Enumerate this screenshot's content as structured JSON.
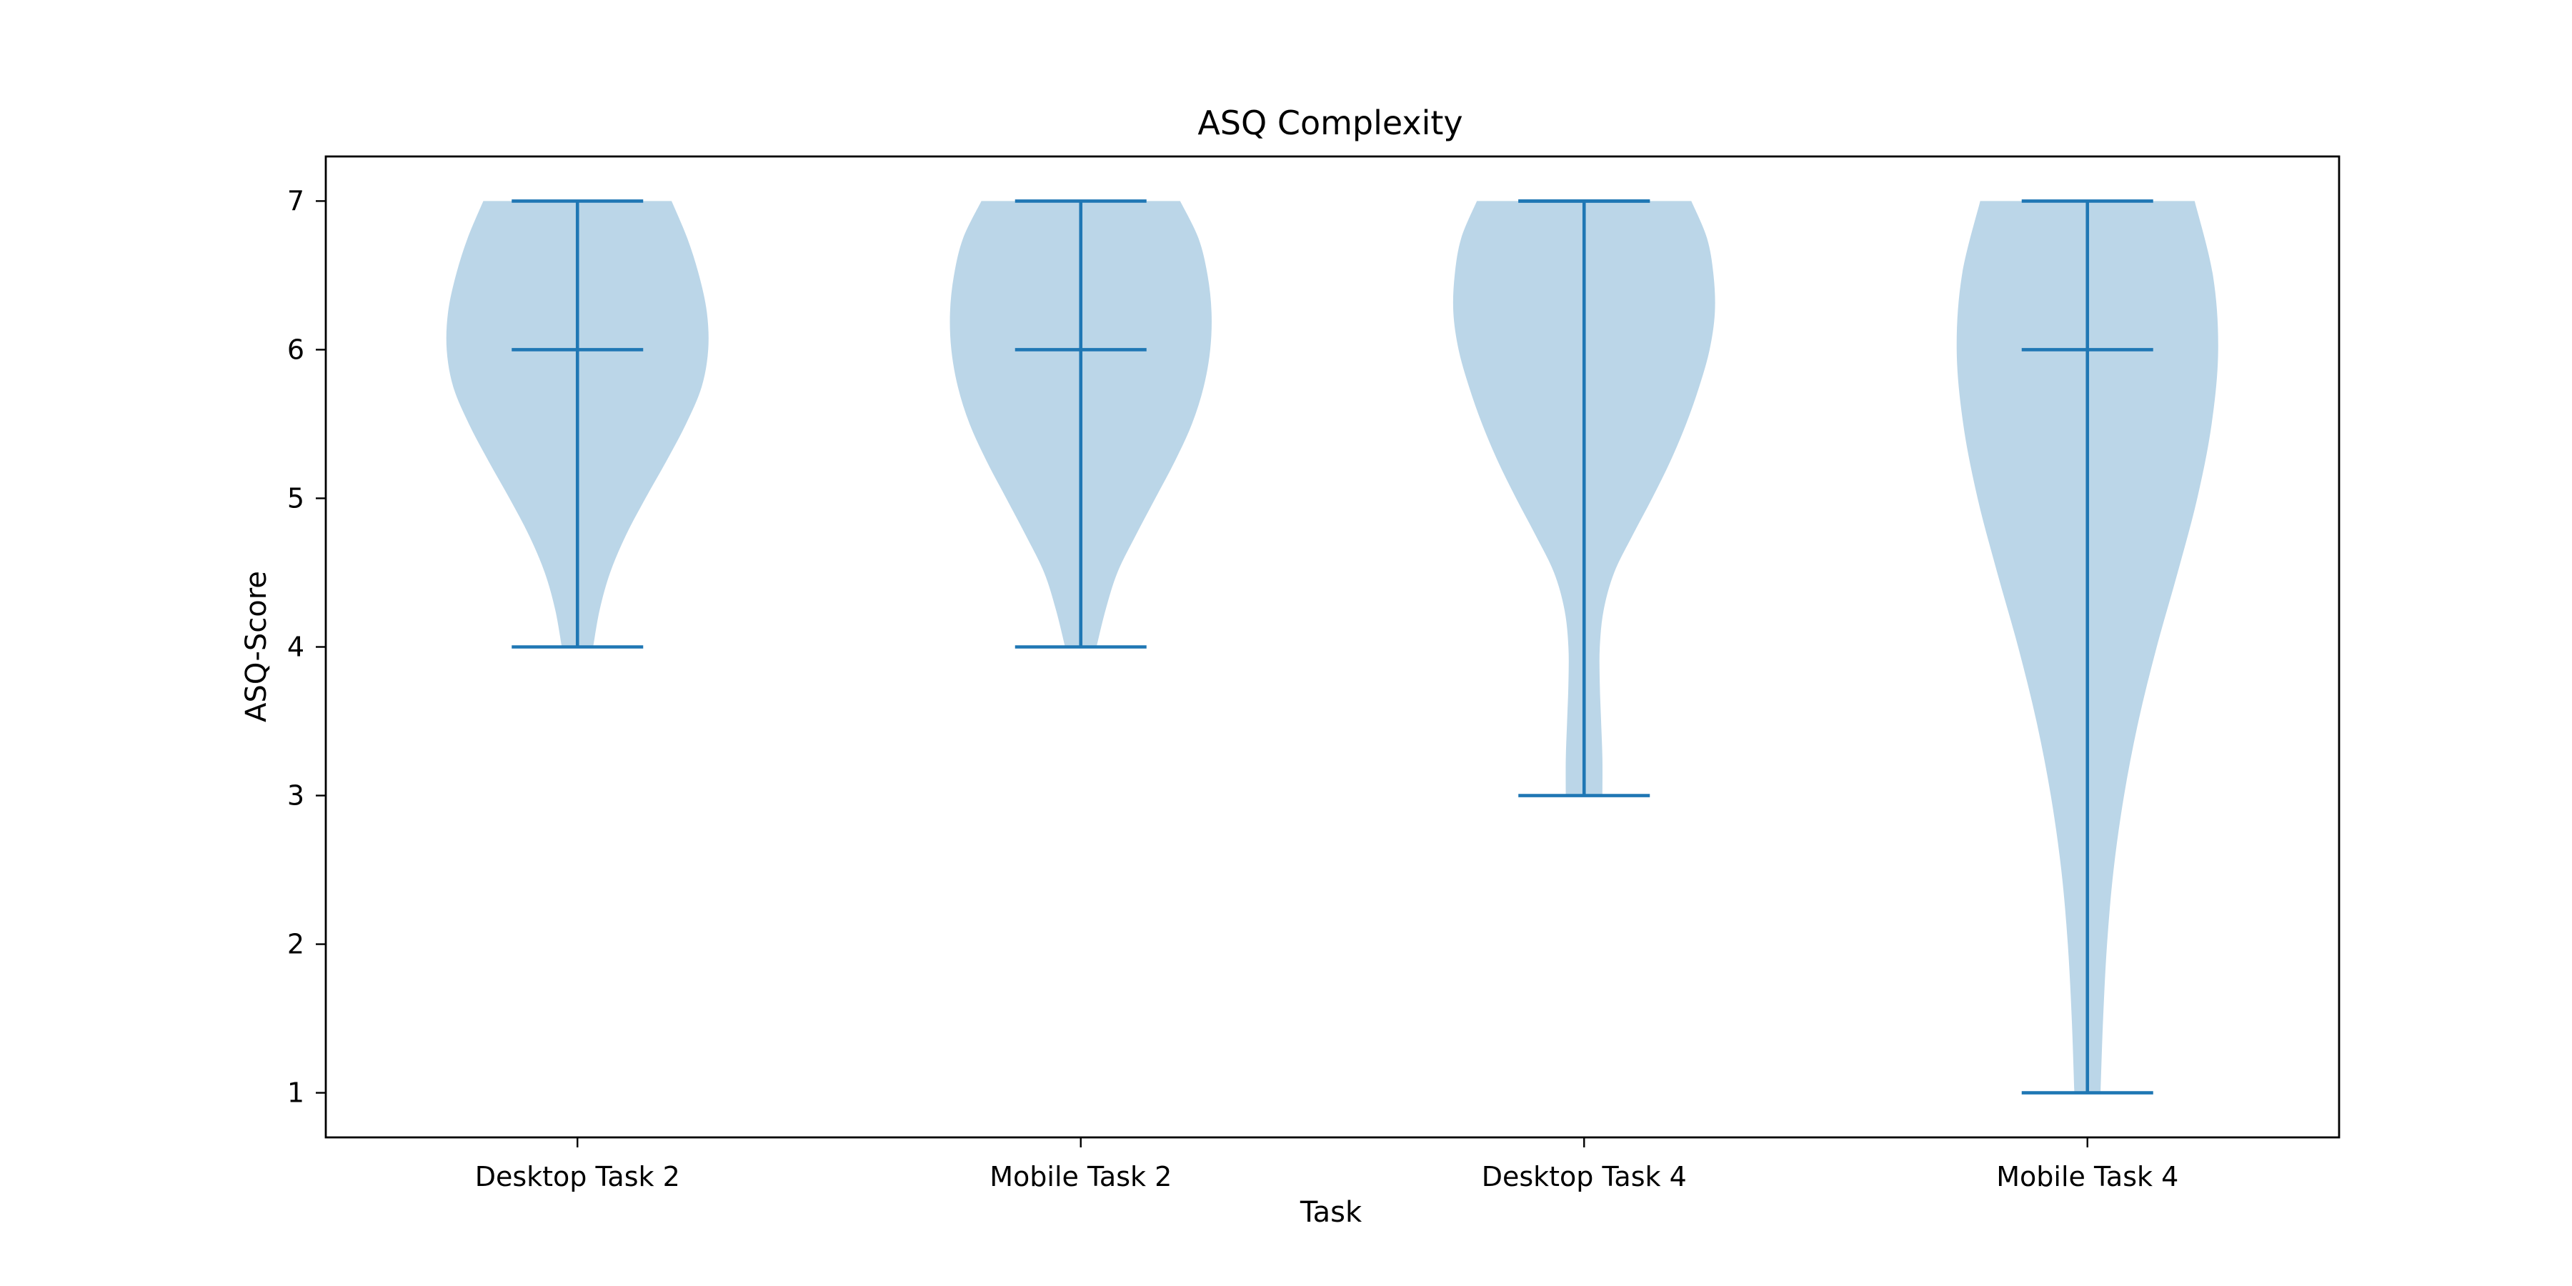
{
  "chart_data": {
    "type": "violin",
    "title": "ASQ Complexity",
    "xlabel": "Task",
    "ylabel": "ASQ-Score",
    "categories": [
      "Desktop Task 2",
      "Mobile Task 2",
      "Desktop Task 4",
      "Mobile Task 4"
    ],
    "ylim": [
      0.7,
      7.3
    ],
    "yticks": [
      1,
      2,
      3,
      4,
      5,
      6,
      7
    ],
    "grid": false,
    "colors": {
      "body": "#1f77b4",
      "lines": "#1f77b4"
    },
    "series": [
      {
        "min": 4,
        "max": 7,
        "median": 6,
        "density_y": [
          4,
          4.25,
          4.5,
          4.75,
          5,
          5.25,
          5.5,
          5.75,
          6,
          6.25,
          6.5,
          6.75,
          7
        ],
        "density_w": [
          0.12,
          0.17,
          0.25,
          0.37,
          0.52,
          0.68,
          0.83,
          0.95,
          1,
          0.99,
          0.93,
          0.84,
          0.72
        ]
      },
      {
        "min": 4,
        "max": 7,
        "median": 6,
        "density_y": [
          4,
          4.25,
          4.5,
          4.75,
          5,
          5.25,
          5.5,
          5.75,
          6,
          6.25,
          6.5,
          6.75,
          7
        ],
        "density_w": [
          0.12,
          0.19,
          0.28,
          0.42,
          0.57,
          0.72,
          0.85,
          0.94,
          0.99,
          1,
          0.97,
          0.9,
          0.76
        ]
      },
      {
        "min": 3,
        "max": 7,
        "median": 7,
        "density_y": [
          3,
          3.25,
          3.5,
          3.75,
          4,
          4.25,
          4.5,
          4.75,
          5,
          5.25,
          5.5,
          5.75,
          6,
          6.25,
          6.5,
          6.75,
          7
        ],
        "density_w": [
          0.14,
          0.14,
          0.13,
          0.12,
          0.12,
          0.15,
          0.23,
          0.37,
          0.52,
          0.66,
          0.78,
          0.88,
          0.96,
          1,
          0.99,
          0.94,
          0.82
        ]
      },
      {
        "min": 1,
        "max": 7,
        "median": 6,
        "density_y": [
          1,
          1.5,
          2,
          2.5,
          3,
          3.5,
          4,
          4.5,
          5,
          5.5,
          6,
          6.5,
          7
        ],
        "density_w": [
          0.1,
          0.12,
          0.15,
          0.2,
          0.28,
          0.39,
          0.53,
          0.69,
          0.84,
          0.95,
          1,
          0.96,
          0.82
        ]
      }
    ]
  }
}
